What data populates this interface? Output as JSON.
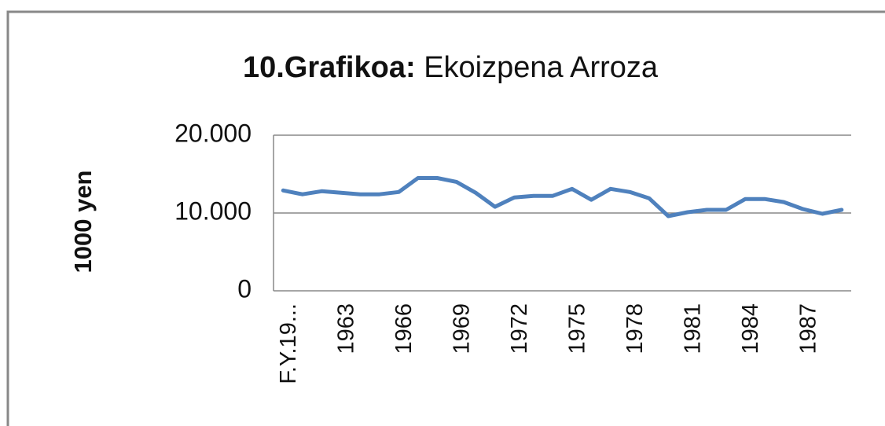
{
  "chart_data": {
    "type": "line",
    "title": {
      "bold": "10.Grafikoa:",
      "text": "Ekoizpena Arroza"
    },
    "y_label": "1000 yen",
    "categories": [
      "F.Y.19...",
      null,
      null,
      "1963",
      null,
      null,
      "1966",
      null,
      null,
      "1969",
      null,
      null,
      "1972",
      null,
      null,
      "1975",
      null,
      null,
      "1978",
      null,
      null,
      "1981",
      null,
      null,
      "1984",
      null,
      null,
      "1987",
      null,
      null
    ],
    "series": [
      {
        "name": "Ekoizpena Arroza",
        "color": "#4f81bd",
        "values": [
          12900,
          12400,
          12800,
          12600,
          12400,
          12400,
          12700,
          14500,
          14500,
          14000,
          12600,
          10800,
          12000,
          12200,
          12200,
          13100,
          11700,
          13100,
          12700,
          11900,
          9600,
          10100,
          10400,
          10400,
          11800,
          11800,
          11400,
          10500,
          9900,
          10400
        ]
      }
    ],
    "ylim": [
      0,
      20000
    ],
    "yticks": [
      0,
      {
        "value": 10000,
        "label": "10.000"
      },
      {
        "value": 20000,
        "label": "20.000"
      }
    ],
    "grid": true
  }
}
